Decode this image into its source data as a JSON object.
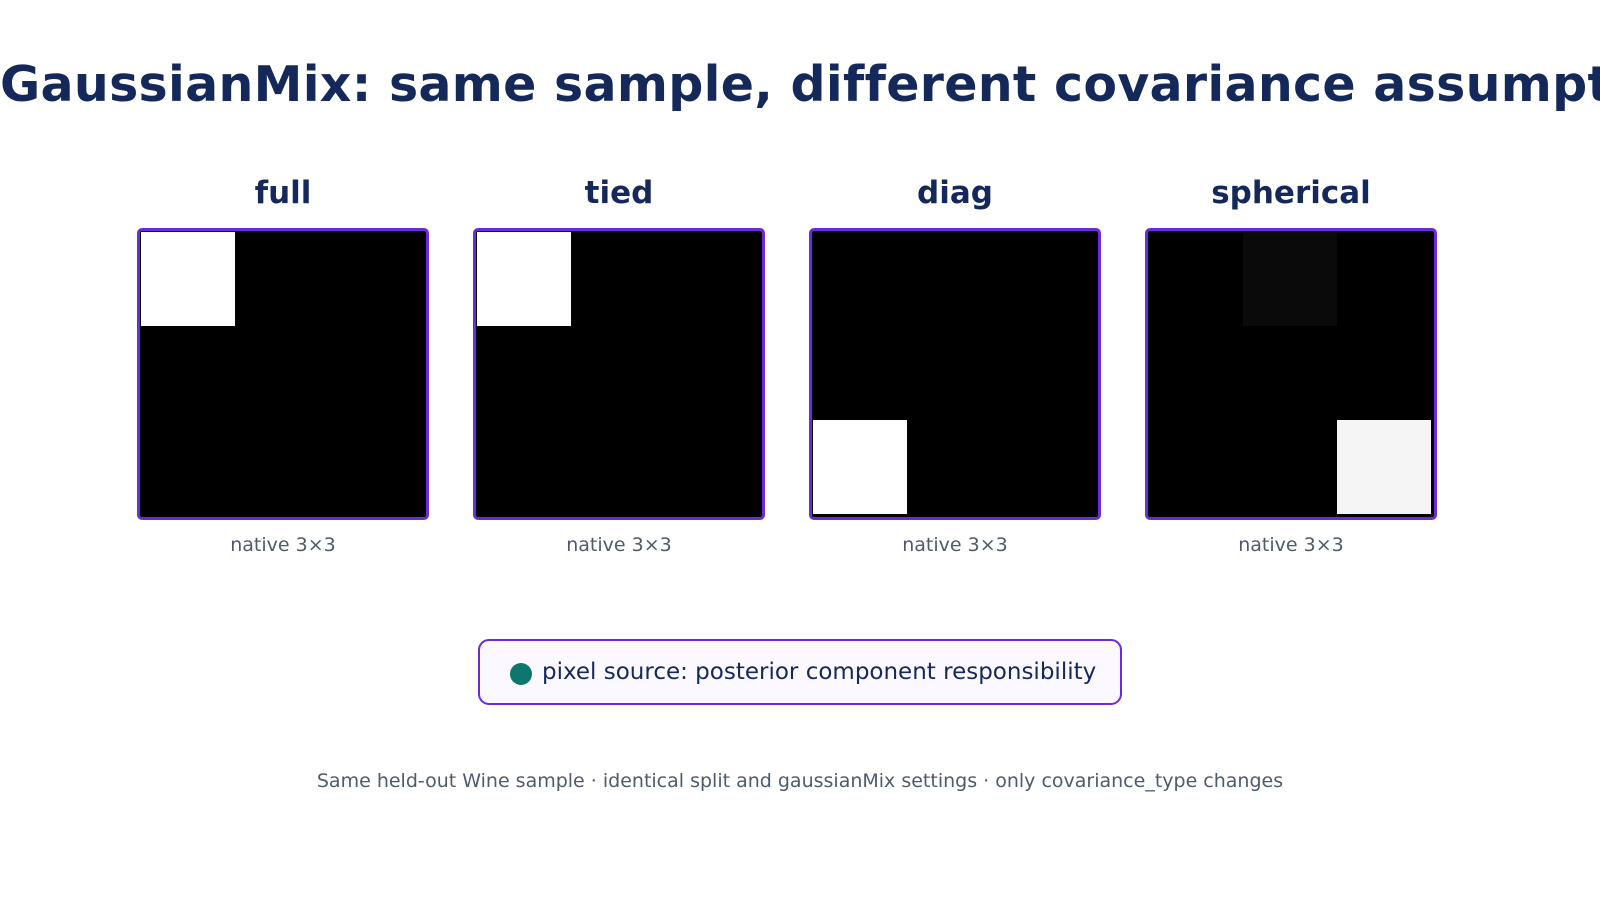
{
  "title": "GaussianMix: same sample, different covariance assumptions",
  "chart_data": {
    "type": "heatmap",
    "panels": [
      {
        "title": "full",
        "caption": "native 3×3",
        "values": [
          [
            1,
            0,
            0
          ],
          [
            0,
            0,
            0
          ],
          [
            0,
            0,
            0
          ]
        ]
      },
      {
        "title": "tied",
        "caption": "native 3×3",
        "values": [
          [
            1,
            0,
            0
          ],
          [
            0,
            0,
            0
          ],
          [
            0,
            0,
            0
          ]
        ]
      },
      {
        "title": "diag",
        "caption": "native 3×3",
        "values": [
          [
            0,
            0,
            0
          ],
          [
            0,
            0,
            0
          ],
          [
            1,
            0,
            0
          ]
        ]
      },
      {
        "title": "spherical",
        "caption": "native 3×3",
        "values": [
          [
            0,
            0.04,
            0
          ],
          [
            0,
            0,
            0
          ],
          [
            0,
            0,
            0.96
          ]
        ]
      }
    ],
    "colormap": "grayscale",
    "legend": {
      "label": "pixel source: posterior component responsibility",
      "color": "#0f766e"
    }
  },
  "footer": "Same held-out Wine sample · identical split and gaussianMix settings · only covariance_type changes"
}
